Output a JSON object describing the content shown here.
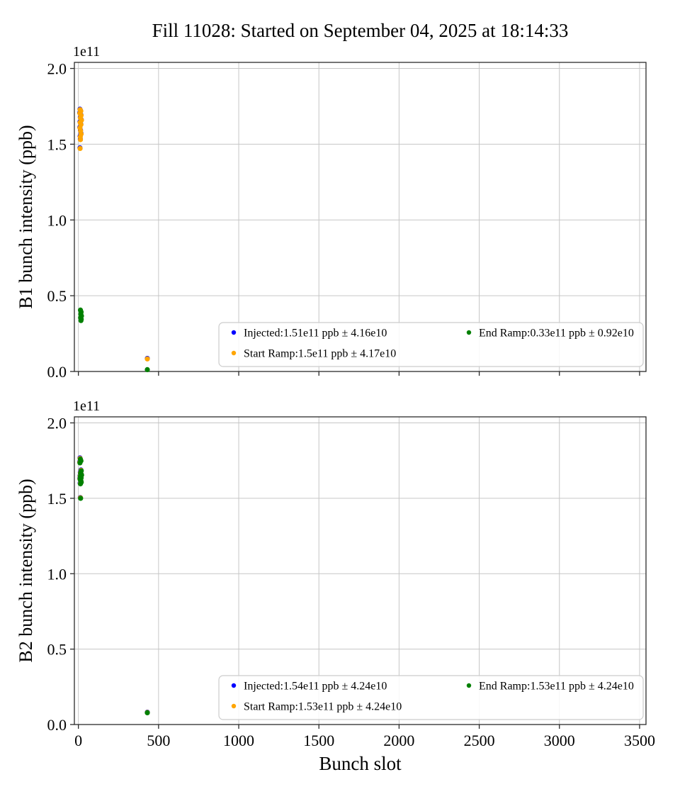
{
  "figure": {
    "title": "Fill 11028: Started on September 04, 2025 at 18:14:33",
    "xlabel": "Bunch slot"
  },
  "chart_data": [
    {
      "type": "scatter",
      "ylabel": "B1 bunch intensity (ppb)",
      "offset_label": "1e11",
      "xlim": [
        -25,
        3540
      ],
      "ylim": [
        0,
        2.04
      ],
      "xticks": [
        0,
        500,
        1000,
        1500,
        2000,
        2500,
        3000,
        3500
      ],
      "xtick_labels": [
        "0",
        "500",
        "1000",
        "1500",
        "2000",
        "2500",
        "3000",
        "3500"
      ],
      "yticks": [
        0.0,
        0.5,
        1.0,
        1.5,
        2.0
      ],
      "ytick_labels": [
        "0.0",
        "0.5",
        "1.0",
        "1.5",
        "2.0"
      ],
      "grid": true,
      "legend_position": "lower center-right",
      "series": [
        {
          "name": "Injected:1.51e11 ppb ± 4.16e10",
          "color": "#0000ff",
          "points": [
            [
              10,
              1.731
            ],
            [
              14,
              1.722
            ],
            [
              8,
              1.708
            ],
            [
              16,
              1.693
            ],
            [
              12,
              1.678
            ],
            [
              18,
              1.662
            ],
            [
              10,
              1.648
            ],
            [
              15,
              1.633
            ],
            [
              9,
              1.612
            ],
            [
              13,
              1.592
            ],
            [
              16,
              1.571
            ],
            [
              11,
              1.553
            ],
            [
              12,
              1.534
            ],
            [
              10,
              1.476
            ],
            [
              430,
              0.086
            ]
          ]
        },
        {
          "name": "Start Ramp:1.5e11 ppb ± 4.17e10",
          "color": "#ffa500",
          "points": [
            [
              11,
              1.728
            ],
            [
              15,
              1.718
            ],
            [
              9,
              1.704
            ],
            [
              17,
              1.69
            ],
            [
              13,
              1.674
            ],
            [
              19,
              1.658
            ],
            [
              11,
              1.644
            ],
            [
              16,
              1.629
            ],
            [
              10,
              1.608
            ],
            [
              14,
              1.588
            ],
            [
              17,
              1.567
            ],
            [
              12,
              1.549
            ],
            [
              13,
              1.53
            ],
            [
              11,
              1.472
            ],
            [
              430,
              0.083
            ]
          ]
        },
        {
          "name": "End Ramp:0.33e11 ppb ± 0.92e10",
          "color": "#008000",
          "points": [
            [
              13,
              0.405
            ],
            [
              17,
              0.392
            ],
            [
              15,
              0.378
            ],
            [
              19,
              0.366
            ],
            [
              14,
              0.355
            ],
            [
              18,
              0.345
            ],
            [
              16,
              0.336
            ],
            [
              430,
              0.012
            ]
          ]
        }
      ]
    },
    {
      "type": "scatter",
      "ylabel": "B2 bunch intensity (ppb)",
      "offset_label": "1e11",
      "xlim": [
        -25,
        3540
      ],
      "ylim": [
        0,
        2.04
      ],
      "xticks": [
        0,
        500,
        1000,
        1500,
        2000,
        2500,
        3000,
        3500
      ],
      "xtick_labels": [
        "0",
        "500",
        "1000",
        "1500",
        "2000",
        "2500",
        "3000",
        "3500"
      ],
      "yticks": [
        0.0,
        0.5,
        1.0,
        1.5,
        2.0
      ],
      "ytick_labels": [
        "0.0",
        "0.5",
        "1.0",
        "1.5",
        "2.0"
      ],
      "grid": true,
      "legend_position": "lower center-right",
      "series": [
        {
          "name": "Injected:1.54e11 ppb ± 4.24e10",
          "color": "#0000ff",
          "points": [
            [
              10,
              1.768
            ],
            [
              14,
              1.755
            ],
            [
              8,
              1.742
            ],
            [
              16,
              1.688
            ],
            [
              12,
              1.672
            ],
            [
              18,
              1.66
            ],
            [
              10,
              1.65
            ],
            [
              15,
              1.641
            ],
            [
              9,
              1.632
            ],
            [
              13,
              1.622
            ],
            [
              16,
              1.612
            ],
            [
              11,
              1.601
            ],
            [
              12,
              1.505
            ],
            [
              430,
              0.082
            ]
          ]
        },
        {
          "name": "Start Ramp:1.53e11 ppb ± 4.24e10",
          "color": "#ffa500",
          "points": [
            [
              11,
              1.764
            ],
            [
              15,
              1.751
            ],
            [
              9,
              1.738
            ],
            [
              17,
              1.685
            ],
            [
              13,
              1.669
            ],
            [
              19,
              1.657
            ],
            [
              11,
              1.647
            ],
            [
              16,
              1.638
            ],
            [
              10,
              1.629
            ],
            [
              14,
              1.619
            ],
            [
              17,
              1.609
            ],
            [
              12,
              1.598
            ],
            [
              13,
              1.503
            ],
            [
              430,
              0.08
            ]
          ]
        },
        {
          "name": "End Ramp:1.53e11 ppb ± 4.24e10",
          "color": "#008000",
          "points": [
            [
              12,
              1.76
            ],
            [
              16,
              1.748
            ],
            [
              10,
              1.735
            ],
            [
              18,
              1.682
            ],
            [
              14,
              1.666
            ],
            [
              20,
              1.654
            ],
            [
              12,
              1.644
            ],
            [
              17,
              1.635
            ],
            [
              11,
              1.626
            ],
            [
              15,
              1.616
            ],
            [
              18,
              1.606
            ],
            [
              13,
              1.596
            ],
            [
              14,
              1.5
            ],
            [
              430,
              0.078
            ]
          ]
        }
      ]
    }
  ]
}
